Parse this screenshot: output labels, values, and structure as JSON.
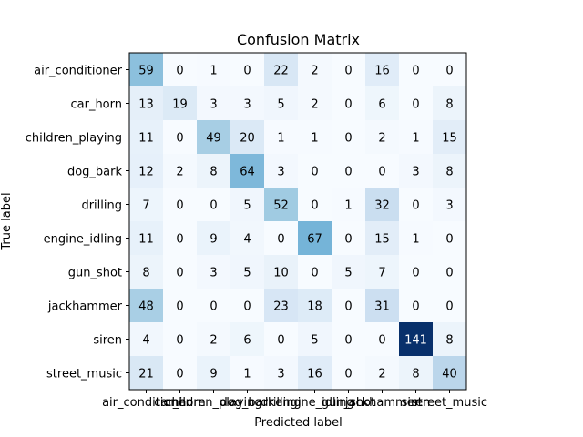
{
  "chart_data": {
    "type": "heatmap",
    "title": "Confusion Matrix",
    "xlabel": "Predicted label",
    "ylabel": "True label",
    "colormap": "Blues",
    "grid": false,
    "legend": "none",
    "x_categories": [
      "air_conditioner",
      "car_horn",
      "children_playing",
      "dog_bark",
      "drilling",
      "engine_idling",
      "gun_shot",
      "jackhammer",
      "siren",
      "street_music"
    ],
    "y_categories": [
      "air_conditioner",
      "car_horn",
      "children_playing",
      "dog_bark",
      "drilling",
      "engine_idling",
      "gun_shot",
      "jackhammer",
      "siren",
      "street_music"
    ],
    "values": [
      [
        59,
        0,
        1,
        0,
        22,
        2,
        0,
        16,
        0,
        0
      ],
      [
        13,
        19,
        3,
        3,
        5,
        2,
        0,
        6,
        0,
        8
      ],
      [
        11,
        0,
        49,
        20,
        1,
        1,
        0,
        2,
        1,
        15
      ],
      [
        12,
        2,
        8,
        64,
        3,
        0,
        0,
        0,
        3,
        8
      ],
      [
        7,
        0,
        0,
        5,
        52,
        0,
        1,
        32,
        0,
        3
      ],
      [
        11,
        0,
        9,
        4,
        0,
        67,
        0,
        15,
        1,
        0
      ],
      [
        8,
        0,
        3,
        5,
        10,
        0,
        5,
        7,
        0,
        0
      ],
      [
        48,
        0,
        0,
        0,
        23,
        18,
        0,
        31,
        0,
        0
      ],
      [
        4,
        0,
        2,
        6,
        0,
        5,
        0,
        0,
        141,
        8
      ],
      [
        21,
        0,
        9,
        1,
        3,
        16,
        0,
        2,
        8,
        40
      ]
    ]
  }
}
